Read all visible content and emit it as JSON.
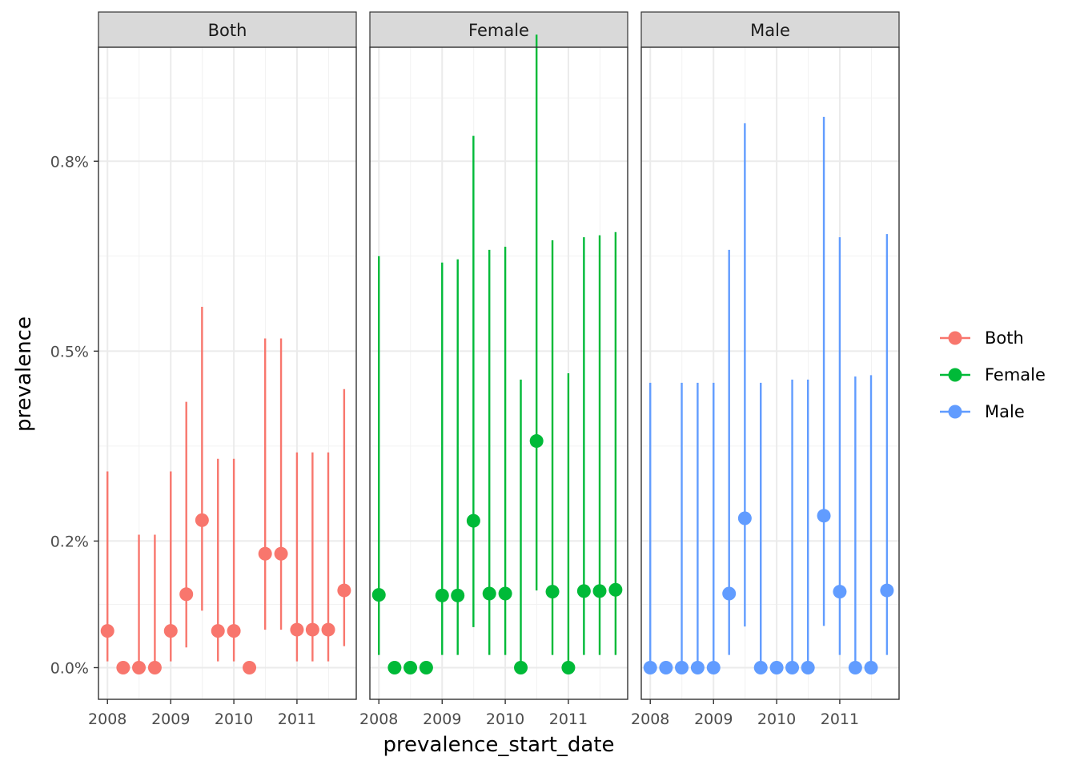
{
  "chart_data": {
    "type": "scatter",
    "subtype": "pointrange",
    "xlabel": "prevalence_start_date",
    "ylabel": "prevalence",
    "ytick_labels": [
      "0.0%",
      "0.2%",
      "0.5%",
      "0.8%"
    ],
    "ytick_values": [
      0.0,
      0.2,
      0.5,
      0.8
    ],
    "xtick_labels": [
      "2008",
      "2009",
      "2010",
      "2011"
    ],
    "xtick_values": [
      "2008-01-01",
      "2009-01-01",
      "2010-01-01",
      "2011-01-01"
    ],
    "xlim": [
      "2007-11-10",
      "2011-12-10"
    ],
    "ylim": [
      -0.05,
      0.98
    ],
    "grid": true,
    "legend": {
      "position": "right",
      "entries": [
        {
          "label": "Both",
          "color": "#F8766D"
        },
        {
          "label": "Female",
          "color": "#00BA38"
        },
        {
          "label": "Male",
          "color": "#619CFF"
        }
      ]
    },
    "panels": [
      {
        "strip": "Both",
        "color": "#F8766D",
        "points": [
          {
            "x": "2008-01-01",
            "y": 0.058,
            "ymin": 0.01,
            "ymax": 0.31
          },
          {
            "x": "2008-04-01",
            "y": 0.0
          },
          {
            "x": "2008-07-01",
            "y": 0.0,
            "ymin": 0.0,
            "ymax": 0.21
          },
          {
            "x": "2008-10-01",
            "y": 0.0,
            "ymin": 0.0,
            "ymax": 0.21
          },
          {
            "x": "2009-01-01",
            "y": 0.058,
            "ymin": 0.01,
            "ymax": 0.31
          },
          {
            "x": "2009-04-01",
            "y": 0.116,
            "ymin": 0.032,
            "ymax": 0.42
          },
          {
            "x": "2009-07-01",
            "y": 0.233,
            "ymin": 0.09,
            "ymax": 0.57
          },
          {
            "x": "2009-10-01",
            "y": 0.058,
            "ymin": 0.01,
            "ymax": 0.33
          },
          {
            "x": "2010-01-01",
            "y": 0.058,
            "ymin": 0.01,
            "ymax": 0.33
          },
          {
            "x": "2010-04-01",
            "y": 0.0
          },
          {
            "x": "2010-07-01",
            "y": 0.18,
            "ymin": 0.06,
            "ymax": 0.52
          },
          {
            "x": "2010-10-01",
            "y": 0.18,
            "ymin": 0.06,
            "ymax": 0.52
          },
          {
            "x": "2011-01-01",
            "y": 0.06,
            "ymin": 0.01,
            "ymax": 0.34
          },
          {
            "x": "2011-04-01",
            "y": 0.06,
            "ymin": 0.01,
            "ymax": 0.34
          },
          {
            "x": "2011-07-01",
            "y": 0.06,
            "ymin": 0.01,
            "ymax": 0.34
          },
          {
            "x": "2011-10-01",
            "y": 0.122,
            "ymin": 0.034,
            "ymax": 0.44
          }
        ]
      },
      {
        "strip": "Female",
        "color": "#00BA38",
        "points": [
          {
            "x": "2008-01-01",
            "y": 0.115,
            "ymin": 0.02,
            "ymax": 0.65
          },
          {
            "x": "2008-04-01",
            "y": 0.0
          },
          {
            "x": "2008-07-01",
            "y": 0.0
          },
          {
            "x": "2008-10-01",
            "y": 0.0
          },
          {
            "x": "2009-01-01",
            "y": 0.114,
            "ymin": 0.02,
            "ymax": 0.64
          },
          {
            "x": "2009-04-01",
            "y": 0.114,
            "ymin": 0.02,
            "ymax": 0.645
          },
          {
            "x": "2009-07-01",
            "y": 0.232,
            "ymin": 0.064,
            "ymax": 0.84
          },
          {
            "x": "2009-10-01",
            "y": 0.117,
            "ymin": 0.02,
            "ymax": 0.66
          },
          {
            "x": "2010-01-01",
            "y": 0.117,
            "ymin": 0.02,
            "ymax": 0.665
          },
          {
            "x": "2010-04-01",
            "y": 0.0,
            "ymin": 0.0,
            "ymax": 0.455
          },
          {
            "x": "2010-07-01",
            "y": 0.358,
            "ymin": 0.122,
            "ymax": 1.0
          },
          {
            "x": "2010-10-01",
            "y": 0.12,
            "ymin": 0.02,
            "ymax": 0.675
          },
          {
            "x": "2011-01-01",
            "y": 0.0,
            "ymin": 0.0,
            "ymax": 0.465
          },
          {
            "x": "2011-04-01",
            "y": 0.121,
            "ymin": 0.02,
            "ymax": 0.68
          },
          {
            "x": "2011-07-01",
            "y": 0.121,
            "ymin": 0.02,
            "ymax": 0.683
          },
          {
            "x": "2011-10-01",
            "y": 0.123,
            "ymin": 0.02,
            "ymax": 0.688
          }
        ]
      },
      {
        "strip": "Male",
        "color": "#619CFF",
        "points": [
          {
            "x": "2008-01-01",
            "y": 0.0,
            "ymin": 0.0,
            "ymax": 0.45
          },
          {
            "x": "2008-04-01",
            "y": 0.0
          },
          {
            "x": "2008-07-01",
            "y": 0.0,
            "ymin": 0.0,
            "ymax": 0.45
          },
          {
            "x": "2008-10-01",
            "y": 0.0,
            "ymin": 0.0,
            "ymax": 0.45
          },
          {
            "x": "2009-01-01",
            "y": 0.0,
            "ymin": 0.0,
            "ymax": 0.45
          },
          {
            "x": "2009-04-01",
            "y": 0.117,
            "ymin": 0.02,
            "ymax": 0.66
          },
          {
            "x": "2009-07-01",
            "y": 0.236,
            "ymin": 0.065,
            "ymax": 0.86
          },
          {
            "x": "2009-10-01",
            "y": 0.0,
            "ymin": 0.0,
            "ymax": 0.45
          },
          {
            "x": "2010-01-01",
            "y": 0.0
          },
          {
            "x": "2010-04-01",
            "y": 0.0,
            "ymin": 0.0,
            "ymax": 0.455
          },
          {
            "x": "2010-07-01",
            "y": 0.0,
            "ymin": 0.0,
            "ymax": 0.455
          },
          {
            "x": "2010-10-01",
            "y": 0.24,
            "ymin": 0.066,
            "ymax": 0.87
          },
          {
            "x": "2011-01-01",
            "y": 0.12,
            "ymin": 0.02,
            "ymax": 0.68
          },
          {
            "x": "2011-04-01",
            "y": 0.0,
            "ymin": 0.0,
            "ymax": 0.46
          },
          {
            "x": "2011-07-01",
            "y": 0.0,
            "ymin": 0.0,
            "ymax": 0.462
          },
          {
            "x": "2011-10-01",
            "y": 0.122,
            "ymin": 0.02,
            "ymax": 0.685
          }
        ]
      }
    ]
  }
}
